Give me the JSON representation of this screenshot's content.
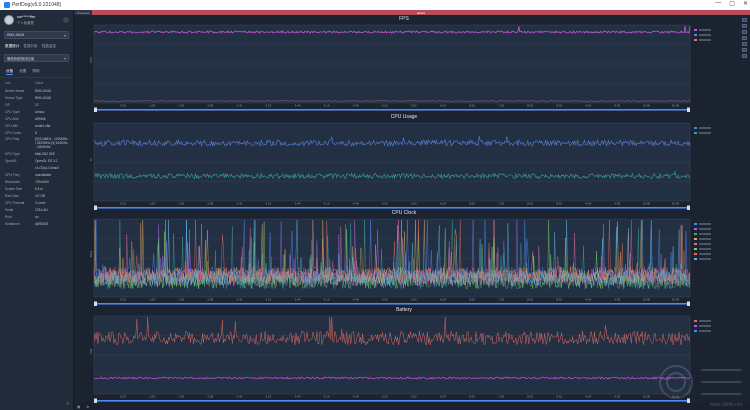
{
  "window": {
    "title": "PerfDog(v5.0.221048)",
    "controls": [
      "—",
      "▢",
      "✕"
    ]
  },
  "user": {
    "name": "sw*****ffer",
    "plan": "个人版套餐"
  },
  "device": {
    "selected": "RMX-AN16"
  },
  "side_tabs": [
    "数据统计",
    "性能分析",
    "性能监控"
  ],
  "app": {
    "selected": "微信系统测试应用"
  },
  "info_tabs": [
    "设备",
    "设置",
    "帮助"
  ],
  "info_header": {
    "key": "Info",
    "value": "Value"
  },
  "device_info": [
    {
      "k": "Device Name",
      "v": "RMX-AN16"
    },
    {
      "k": "Device Type",
      "v": "RMX-AN16"
    },
    {
      "k": "OS",
      "v": "12"
    },
    {
      "k": "CPU Type",
      "v": "Unisoc"
    },
    {
      "k": "CPU Arch",
      "v": "ARMv8"
    },
    {
      "k": "CPU ABI",
      "v": "arm64-v8a"
    },
    {
      "k": "CPU Cores",
      "v": "8"
    },
    {
      "k": "CPU Freq",
      "v": "[0] 614MHz - 1200MHz / 1800MHz [4] 614MHz - 1800MHz"
    },
    {
      "k": "GPU Type",
      "v": "Mali-G52 3EE"
    },
    {
      "k": "OpenGL",
      "v": "OpenGL ES 3.2"
    },
    {
      "k": "",
      "v": "v1.r32p1-01eac0"
    },
    {
      "k": "GPU Freq",
      "v": "unavailable"
    },
    {
      "k": "Resolution",
      "v": "720x1600"
    },
    {
      "k": "Screen Size",
      "v": "6.5 in"
    },
    {
      "k": "Ram Size",
      "v": "4.0 GB"
    },
    {
      "k": "CPU Thermal",
      "v": "3 Level"
    },
    {
      "k": "Serial",
      "v": "1234-AN"
    },
    {
      "k": "Root",
      "v": "no"
    },
    {
      "k": "Serialnum",
      "v": "a1f95523"
    }
  ],
  "topstrip": {
    "overview": "Overview",
    "label": "label1"
  },
  "time_ticks": [
    "0:32",
    "1:04",
    "1:36",
    "2:08",
    "2:40",
    "3:12",
    "3:44",
    "4:16",
    "4:48",
    "5:20",
    "5:52",
    "6:24",
    "6:56",
    "7:28",
    "8:00",
    "8:32",
    "9:04",
    "9:36",
    "10:08",
    "10:40"
  ],
  "colors": {
    "accent": "#4c8bf5",
    "fps": "#c455d8",
    "cpu_app": "#5a7fd6",
    "cpu_total": "#3aa59a",
    "battery": "#e06a62",
    "battery2": "#c455d8",
    "topstrip": "#b44d58"
  },
  "charts": [
    {
      "title": "FPS",
      "ylabel": "FPS"
    },
    {
      "title": "CPU Usage",
      "ylabel": "%"
    },
    {
      "title": "CPU Clock",
      "ylabel": "MHz"
    },
    {
      "title": "Battery",
      "ylabel": "mW"
    }
  ],
  "watermark": {
    "text": "www.3elife.net"
  }
}
